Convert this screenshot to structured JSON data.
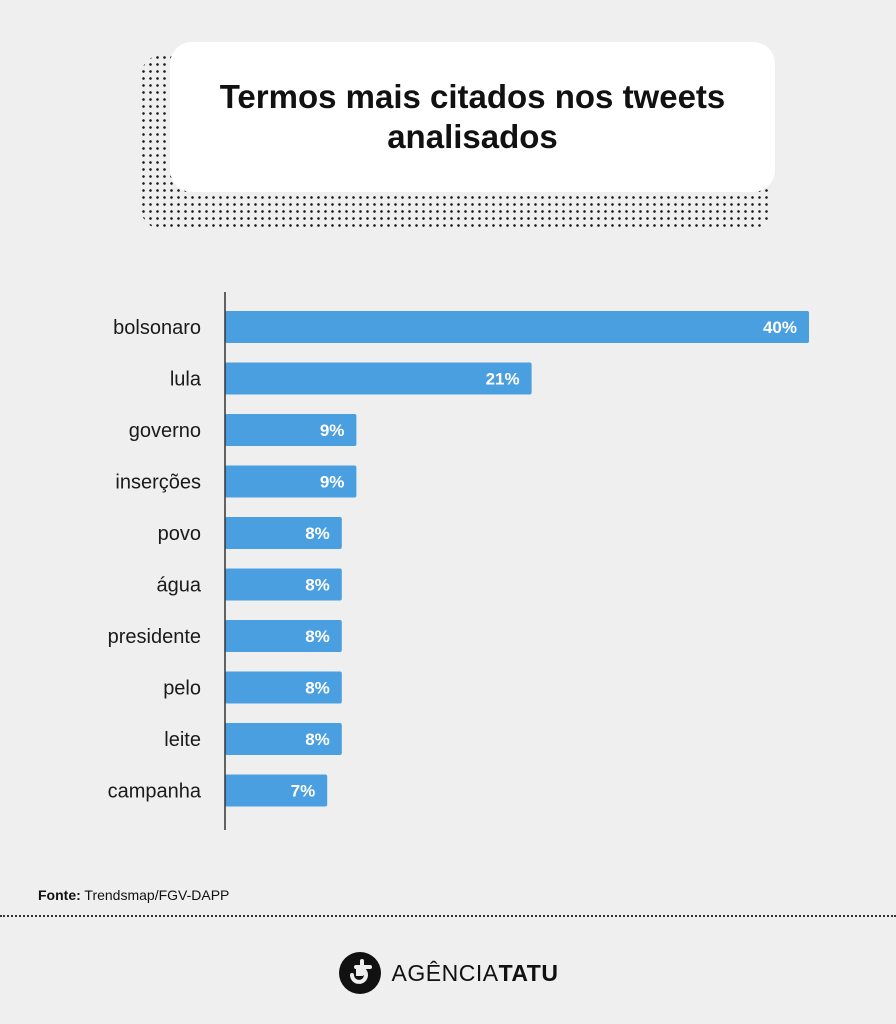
{
  "title": "Termos mais citados nos tweets analisados",
  "chart_data": {
    "type": "bar",
    "orientation": "horizontal",
    "categories": [
      "bolsonaro",
      "lula",
      "governo",
      "inserções",
      "povo",
      "água",
      "presidente",
      "pelo",
      "leite",
      "campanha"
    ],
    "values": [
      40,
      21,
      9,
      9,
      8,
      8,
      8,
      8,
      8,
      7
    ],
    "value_labels": [
      "40%",
      "21%",
      "9%",
      "9%",
      "8%",
      "8%",
      "8%",
      "8%",
      "8%",
      "7%"
    ],
    "bar_color": "#4a9fe0",
    "xlim": [
      0,
      40
    ],
    "grid": false,
    "legend": "none"
  },
  "source": {
    "label": "Fonte:",
    "text": "Trendsmap/FGV-DAPP"
  },
  "brand": {
    "name_regular": "AGÊNCIA",
    "name_bold": "TATU"
  },
  "colors": {
    "background": "#efefef",
    "bar": "#4a9fe0",
    "text": "#111111"
  }
}
